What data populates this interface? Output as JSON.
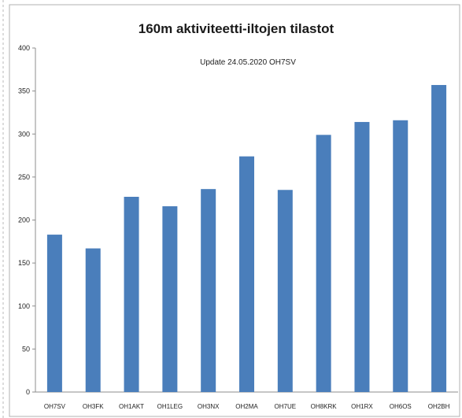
{
  "chart_data": {
    "type": "bar",
    "title": "160m aktiviteetti-iltojen  tilastot",
    "annotation": "Update 24.05.2020  OH7SV",
    "categories": [
      "OH7SV",
      "OH3FK",
      "OH1AKT",
      "OH1LEG",
      "OH3NX",
      "OH2MA",
      "OH7UE",
      "OH8KRK",
      "OH1RX",
      "OH6OS",
      "OH2BH"
    ],
    "values": [
      183,
      167,
      227,
      216,
      236,
      274,
      235,
      299,
      314,
      316,
      357
    ],
    "ylim": [
      0,
      400
    ],
    "yticks": [
      "0",
      "50",
      "100",
      "150",
      "200",
      "250",
      "300",
      "350",
      "400"
    ],
    "xlabel": "",
    "ylabel": "",
    "grid": false,
    "legend": "none",
    "colors": {
      "bar": "#4a7ebb",
      "axis": "#8c8c8c",
      "frame": "#b0b0b0"
    }
  }
}
